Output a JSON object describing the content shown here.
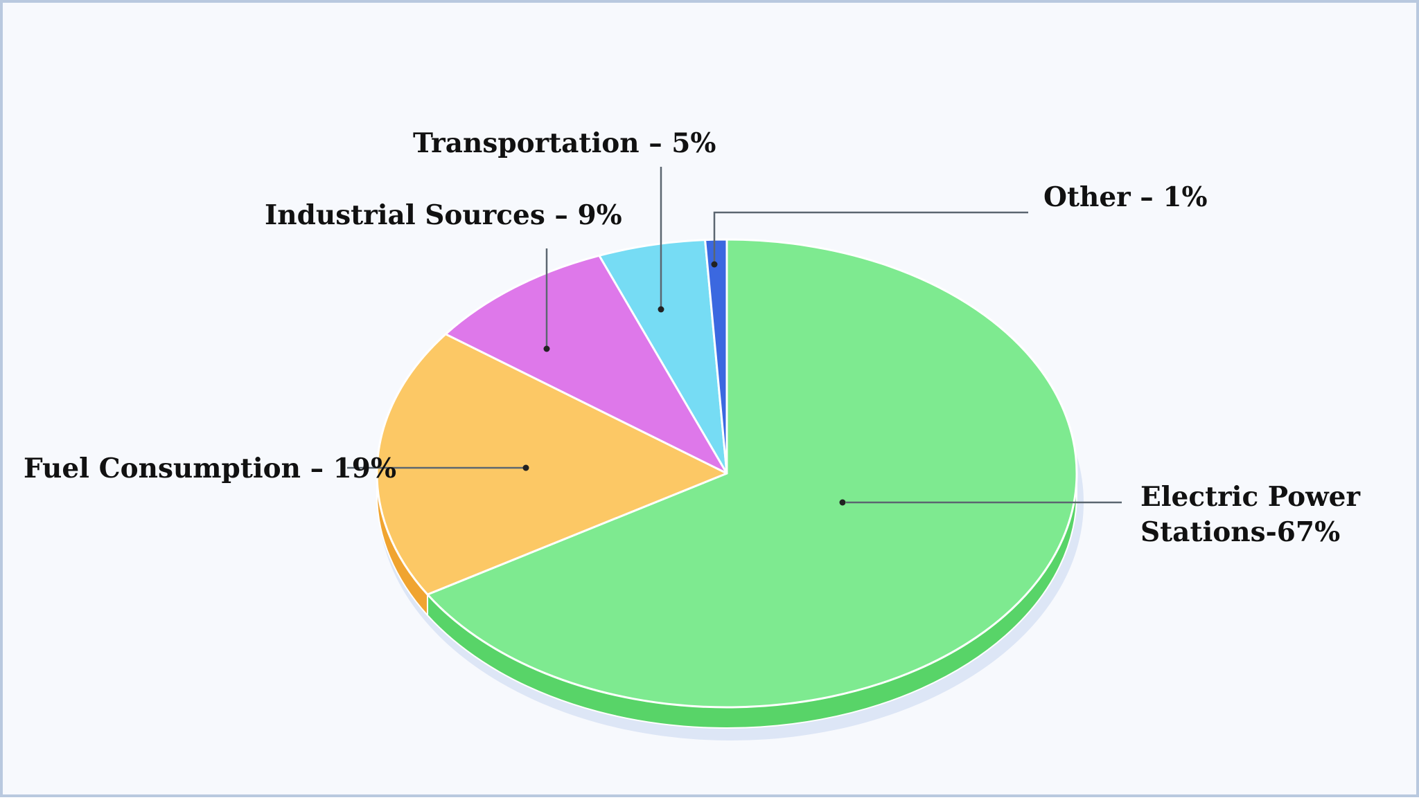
{
  "chart_data": {
    "type": "pie",
    "title": "",
    "style": "3d",
    "slices": [
      {
        "label": "Electric Power Stations-67%",
        "label_lines": [
          "Electric Power",
          "Stations-67%"
        ],
        "value": 67,
        "color": "#7eea90",
        "side_color": "#58d468"
      },
      {
        "label": "Fuel Consumption – 19%",
        "label_lines": [
          "Fuel Consumption – 19%"
        ],
        "value": 19,
        "color": "#fcc865",
        "side_color": "#f0a430"
      },
      {
        "label": "Industrial Sources – 9%",
        "label_lines": [
          "Industrial Sources – 9%"
        ],
        "value": 9,
        "color": "#de78ea",
        "side_color": "#c95ad6"
      },
      {
        "label": "Transportation – 5%",
        "label_lines": [
          "Transportation – 5%"
        ],
        "value": 5,
        "color": "#76dcf4",
        "side_color": "#4fc4e2"
      },
      {
        "label": "Other – 1%",
        "label_lines": [
          "Other – 1%"
        ],
        "value": 1,
        "color": "#3b68e0",
        "side_color": "#2a4fbf"
      }
    ]
  }
}
